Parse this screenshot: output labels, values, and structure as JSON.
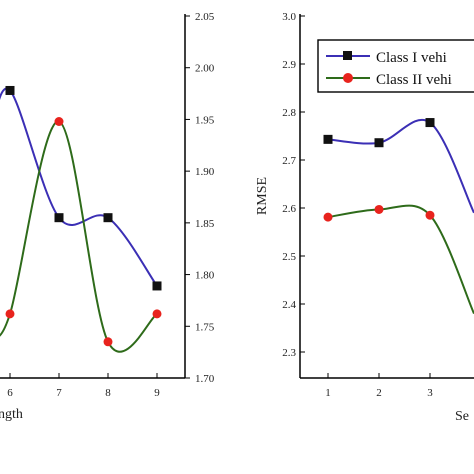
{
  "chart_data": [
    {
      "type": "line",
      "x": [
        6,
        7,
        8,
        9
      ],
      "xlabel_visible": "ngth",
      "y_right_ticks": [
        "2.05",
        "2.00",
        "1.95",
        "1.90",
        "1.85",
        "1.80",
        "1.75",
        "1.70"
      ],
      "y_right_lim": [
        1.7,
        2.05
      ],
      "series": [
        {
          "color": "#3b2fb5",
          "marker": "square",
          "x": [
            6,
            7,
            8,
            9
          ],
          "values": [
            1.978,
            1.855,
            1.855,
            1.789
          ]
        },
        {
          "color": "#2e6b1a",
          "marker": "circle",
          "marker_color": "#e8231d",
          "x": [
            6,
            7,
            8,
            9
          ],
          "values": [
            1.762,
            1.948,
            1.735,
            1.762
          ]
        }
      ],
      "x_tick_labels": [
        "6",
        "7",
        "8",
        "9"
      ]
    },
    {
      "type": "line",
      "ylabel": "RMSE",
      "xlabel_visible": "Se",
      "y_ticks": [
        "3.0",
        "2.9",
        "2.8",
        "2.7",
        "2.6",
        "2.5",
        "2.4",
        "2.3"
      ],
      "ylim": [
        2.3,
        3.0
      ],
      "x_tick_labels": [
        "1",
        "2",
        "3"
      ],
      "legend_position": "top-right",
      "series": [
        {
          "name": "Class I vehi",
          "color": "#3b2fb5",
          "marker": "square",
          "x": [
            1,
            2,
            3
          ],
          "values": [
            2.743,
            2.736,
            2.778
          ]
        },
        {
          "name": "Class II vehi",
          "color": "#2e6b1a",
          "marker": "circle",
          "marker_color": "#e8231d",
          "x": [
            1,
            2,
            3
          ],
          "values": [
            2.581,
            2.597,
            2.585
          ]
        }
      ]
    }
  ]
}
